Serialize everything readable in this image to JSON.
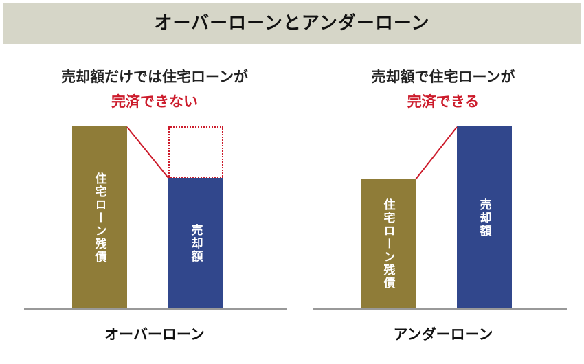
{
  "banner": {
    "title": "オーバーローンとアンダーローン"
  },
  "panels": [
    {
      "heading_line1": "売却額だけでは住宅ローンが",
      "heading_line2": "完済できない",
      "loan_label": "住宅ローン残債",
      "sale_label": "売却額",
      "caption": "オーバーローン"
    },
    {
      "heading_line1": "売却額で住宅ローンが",
      "heading_line2": "完済できる",
      "loan_label": "住宅ローン残債",
      "sale_label": "売却額",
      "caption": "アンダーローン"
    }
  ],
  "colors": {
    "loan_bar": "#8f7c38",
    "sale_bar": "#31478c",
    "accent_red": "#cc1b2b",
    "banner_bg": "#d6d6c8"
  }
}
